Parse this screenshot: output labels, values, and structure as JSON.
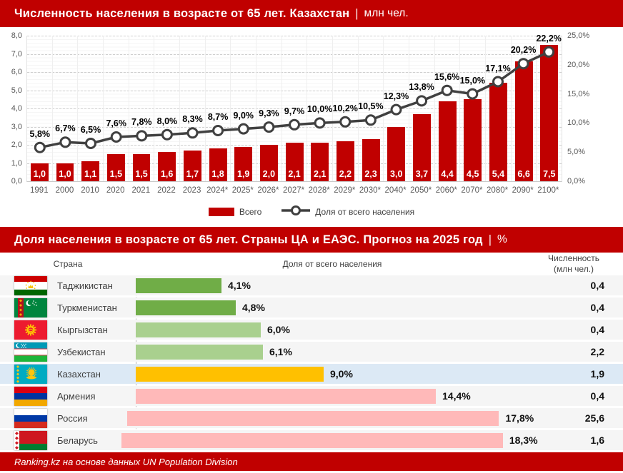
{
  "footer": {
    "source": "Ranking.kz на основе данных UN Population Division"
  },
  "colors": {
    "brand_red": "#C00000",
    "bar_red": "#C00000",
    "line_gray": "#404040",
    "dark_green": "#70AD47",
    "light_green": "#A9D08E",
    "gold": "#FFC000",
    "pink": "#FFB9B9",
    "highlight_blue": "#DCE9F5",
    "row_gray": "#F5F5F5"
  },
  "chart_data": [
    {
      "type": "bar",
      "subtype": "combo-bar-line",
      "title": "Численность населения в возрасте от 65 лет. Казахстан",
      "separator": "|",
      "unit": "млн чел.",
      "grid": true,
      "legend_position": "bottom",
      "categories": [
        "1991",
        "2000",
        "2010",
        "2020",
        "2021",
        "2022",
        "2023",
        "2024*",
        "2025*",
        "2026*",
        "2027*",
        "2028*",
        "2029*",
        "2030*",
        "2040*",
        "2050*",
        "2060*",
        "2070*",
        "2080*",
        "2090*",
        "2100*"
      ],
      "series": [
        {
          "name": "Всего",
          "kind": "bar",
          "axis": "left",
          "color": "#C00000",
          "values": [
            1.0,
            1.0,
            1.1,
            1.5,
            1.5,
            1.6,
            1.7,
            1.8,
            1.9,
            2.0,
            2.1,
            2.1,
            2.2,
            2.3,
            3.0,
            3.7,
            4.4,
            4.5,
            5.4,
            6.6,
            7.5
          ],
          "labels": [
            "1,0",
            "1,0",
            "1,1",
            "1,5",
            "1,5",
            "1,6",
            "1,7",
            "1,8",
            "1,9",
            "2,0",
            "2,1",
            "2,1",
            "2,2",
            "2,3",
            "3,0",
            "3,7",
            "4,4",
            "4,5",
            "5,4",
            "6,6",
            "7,5"
          ]
        },
        {
          "name": "Доля от всего населения",
          "kind": "line",
          "axis": "right",
          "color": "#404040",
          "values": [
            5.8,
            6.7,
            6.5,
            7.6,
            7.8,
            8.0,
            8.3,
            8.7,
            9.0,
            9.3,
            9.7,
            10.0,
            10.2,
            10.5,
            12.3,
            13.8,
            15.6,
            15.0,
            17.1,
            20.2,
            22.2
          ],
          "labels": [
            "5,8%",
            "6,7%",
            "6,5%",
            "7,6%",
            "7,8%",
            "8,0%",
            "8,3%",
            "8,7%",
            "9,0%",
            "9,3%",
            "9,7%",
            "10,0%",
            "10,2%",
            "10,5%",
            "12,3%",
            "13,8%",
            "15,6%",
            "15,0%",
            "17,1%",
            "20,2%",
            "22,2%"
          ]
        }
      ],
      "y_left": {
        "min": 0,
        "max": 8,
        "ticks": [
          "0,0",
          "1,0",
          "2,0",
          "3,0",
          "4,0",
          "5,0",
          "6,0",
          "7,0",
          "8,0"
        ]
      },
      "y_right": {
        "min": 0,
        "max": 25,
        "ticks": [
          "0,0%",
          "5,0%",
          "10,0%",
          "15,0%",
          "20,0%",
          "25,0%"
        ]
      }
    },
    {
      "type": "bar",
      "subtype": "horizontal-bar-table",
      "title": "Доля населения в возрасте от 65 лет. Страны ЦА и ЕАЭС. Прогноз на 2025 год",
      "separator": "|",
      "unit": "%",
      "headers": {
        "country": "Страна",
        "share": "Доля от всего населения",
        "population_line1": "Численность",
        "population_line2": "(млн чел.)"
      },
      "rows": [
        {
          "country": "Таджикистан",
          "flag": "tajikistan",
          "share": 4.1,
          "share_label": "4,1%",
          "population": "0,4",
          "bar_color": "#70AD47",
          "highlight": false
        },
        {
          "country": "Туркменистан",
          "flag": "turkmenistan",
          "share": 4.8,
          "share_label": "4,8%",
          "population": "0,4",
          "bar_color": "#70AD47",
          "highlight": false
        },
        {
          "country": "Кыргызстан",
          "flag": "kyrgyzstan",
          "share": 6.0,
          "share_label": "6,0%",
          "population": "0,4",
          "bar_color": "#A9D08E",
          "highlight": false
        },
        {
          "country": "Узбекистан",
          "flag": "uzbekistan",
          "share": 6.1,
          "share_label": "6,1%",
          "population": "2,2",
          "bar_color": "#A9D08E",
          "highlight": false
        },
        {
          "country": "Казахстан",
          "flag": "kazakhstan",
          "share": 9.0,
          "share_label": "9,0%",
          "population": "1,9",
          "bar_color": "#FFC000",
          "highlight": true
        },
        {
          "country": "Армения",
          "flag": "armenia",
          "share": 14.4,
          "share_label": "14,4%",
          "population": "0,4",
          "bar_color": "#FFB9B9",
          "highlight": false
        },
        {
          "country": "Россия",
          "flag": "russia",
          "share": 17.8,
          "share_label": "17,8%",
          "population": "25,6",
          "bar_color": "#FFB9B9",
          "highlight": false
        },
        {
          "country": "Беларусь",
          "flag": "belarus",
          "share": 18.3,
          "share_label": "18,3%",
          "population": "1,6",
          "bar_color": "#FFB9B9",
          "highlight": false
        }
      ]
    }
  ]
}
